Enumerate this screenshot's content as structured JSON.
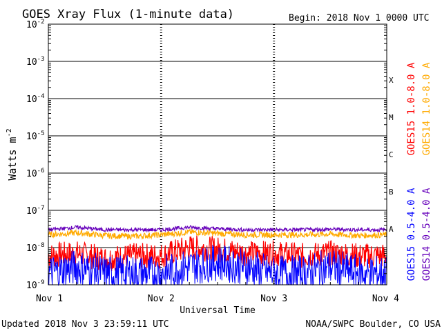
{
  "chart_data": {
    "type": "line",
    "title": "GOES Xray Flux (1-minute data)",
    "begin_label": "Begin:  2018 Nov 1 0000 UTC",
    "ylabel_main": "Watts m",
    "ylabel_exp": "-2",
    "xlabel": "Universal Time",
    "yscale": "log",
    "ylim": [
      1e-09,
      0.01
    ],
    "y_ticks": [
      {
        "exp": "-2",
        "value": 0.01
      },
      {
        "exp": "-3",
        "value": 0.001
      },
      {
        "exp": "-4",
        "value": 0.0001
      },
      {
        "exp": "-5",
        "value": 1e-05
      },
      {
        "exp": "-6",
        "value": 1e-06
      },
      {
        "exp": "-7",
        "value": 1e-07
      },
      {
        "exp": "-8",
        "value": 1e-08
      },
      {
        "exp": "-9",
        "value": 1e-09
      }
    ],
    "x_categories": [
      "Nov 1",
      "Nov 2",
      "Nov 3",
      "Nov 4"
    ],
    "flare_classes": [
      {
        "label": "X",
        "value": 0.0001
      },
      {
        "label": "M",
        "value": 1e-05
      },
      {
        "label": "C",
        "value": 1e-06
      },
      {
        "label": "B",
        "value": 1e-07
      },
      {
        "label": "A",
        "value": 1e-08
      }
    ],
    "x": [
      0,
      0.25,
      0.5,
      0.75,
      1,
      1.25,
      1.5,
      1.75,
      2,
      2.25,
      2.5,
      2.75,
      3
    ],
    "series": [
      {
        "name": "GOES15 1.0-8.0 A",
        "color": "#ff0000",
        "values": [
          6e-09,
          7e-09,
          5e-09,
          6e-09,
          6e-09,
          1e-08,
          9e-09,
          7e-09,
          7e-09,
          6e-09,
          7e-09,
          6e-09,
          6e-09
        ]
      },
      {
        "name": "GOES14 1.0-8.0 A",
        "color": "#ffaa00",
        "values": [
          2.2e-08,
          2.5e-08,
          2.1e-08,
          2e-08,
          2.2e-08,
          2.6e-08,
          2.4e-08,
          2.2e-08,
          2.2e-08,
          2.2e-08,
          2.3e-08,
          2.1e-08,
          2.2e-08
        ]
      },
      {
        "name": "GOES15 0.5-4.0 A",
        "color": "#0000ff",
        "values": [
          2e-09,
          3e-09,
          2e-09,
          2e-09,
          2e-09,
          3e-09,
          4e-09,
          3e-09,
          2e-09,
          2e-09,
          3e-09,
          2e-09,
          2e-09
        ]
      },
      {
        "name": "GOES14 0.5-4.0 A",
        "color": "#6600bb",
        "values": [
          3e-08,
          3.5e-08,
          3e-08,
          3e-08,
          3e-08,
          3.5e-08,
          3.2e-08,
          3e-08,
          3e-08,
          3e-08,
          3.1e-08,
          3e-08,
          3e-08
        ]
      }
    ],
    "grid": true,
    "legend": "right"
  },
  "footer": {
    "updated": "Updated 2018 Nov  3 23:59:11 UTC",
    "credit": "NOAA/SWPC Boulder, CO USA"
  }
}
